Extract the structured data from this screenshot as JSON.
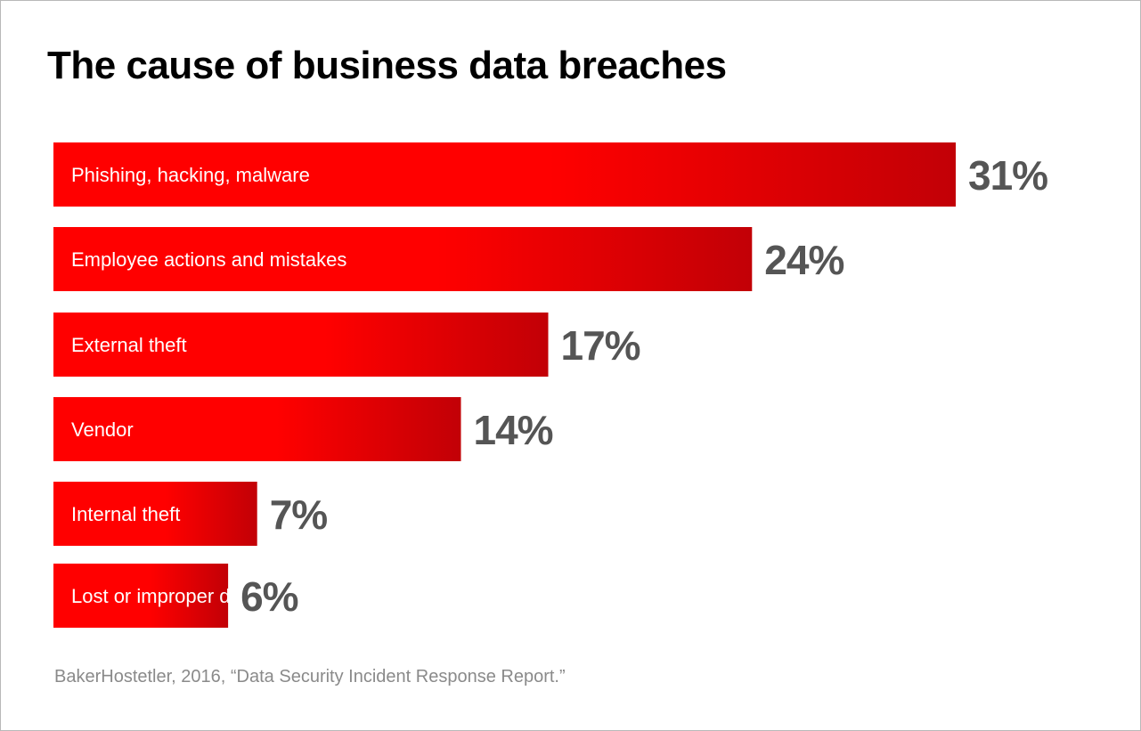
{
  "chart_data": {
    "type": "bar",
    "orientation": "horizontal",
    "title": "The cause of business data breaches",
    "categories": [
      "Phishing, hacking, malware",
      "Employee actions and mistakes",
      "External theft",
      "Vendor",
      "Internal theft",
      "Lost or improper disposal"
    ],
    "values": [
      31,
      24,
      17,
      14,
      7,
      6
    ],
    "value_labels": [
      "31%",
      "24%",
      "17%",
      "14%",
      "7%",
      "6%"
    ],
    "xlabel": "",
    "ylabel": "",
    "grid": false,
    "legend": "none"
  },
  "source": "BakerHostetler, 2016, “Data Security Incident Response Report.”",
  "colors": {
    "bar_light": "#ff0000",
    "bar_dark": "#c20006",
    "value_text": "#555555",
    "title_text": "#000000",
    "source_text": "#8a8a8a"
  }
}
